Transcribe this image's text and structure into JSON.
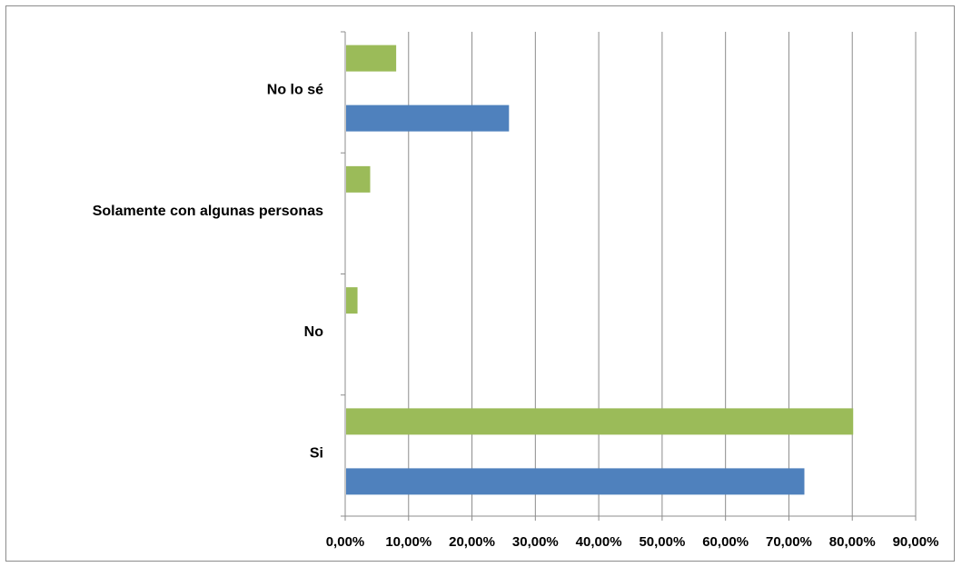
{
  "chart_data": {
    "type": "bar",
    "orientation": "horizontal",
    "categories": [
      "Si",
      "No",
      "Solamente con algunas personas",
      "No lo sé"
    ],
    "series": [
      {
        "values": [
          72.3,
          0,
          0,
          25.7
        ],
        "color": "#4f81bd"
      },
      {
        "values": [
          80.0,
          1.8,
          3.8,
          7.9
        ],
        "color": "#9bbb59"
      }
    ],
    "xlim": [
      0,
      90
    ],
    "x_ticks": [
      "0,00%",
      "10,00%",
      "20,00%",
      "30,00%",
      "40,00%",
      "50,00%",
      "60,00%",
      "70,00%",
      "80,00%",
      "90,00%"
    ],
    "grid": true,
    "gridline_color": "#8c8c8c",
    "title": "",
    "xlabel": "",
    "ylabel": "",
    "legend": "none"
  }
}
